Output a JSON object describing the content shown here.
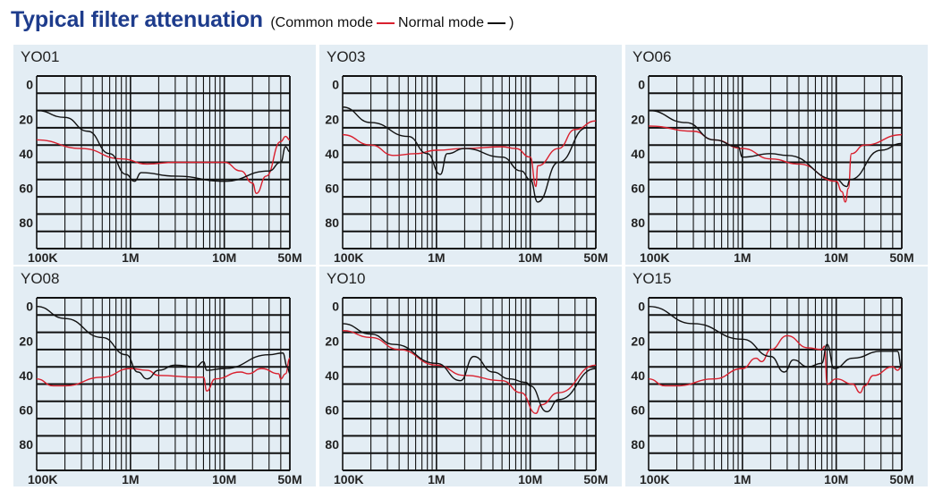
{
  "title": "Typical filter attenuation",
  "legend": {
    "open": "(",
    "common_label": "Common mode",
    "normal_label": "Normal mode",
    "close": ")",
    "common_color": "#d9202e",
    "normal_color": "#111111"
  },
  "chart_data": [
    {
      "type": "line",
      "title": "YO01",
      "xscale": "log",
      "xlim_MHz": [
        0.1,
        50
      ],
      "ylim_dB": [
        -5,
        95
      ],
      "y_inverted": true,
      "yticks": [
        "0",
        "20",
        "40",
        "60",
        "80"
      ],
      "xticks": [
        "100K",
        "1M",
        "10M",
        "50M"
      ],
      "series": [
        {
          "name": "Common mode",
          "color": "#d9202e",
          "x": [
            0.1,
            0.3,
            0.8,
            1.5,
            3,
            10,
            15,
            20,
            22,
            28,
            40,
            45,
            50
          ],
          "y": [
            32,
            37,
            43,
            46,
            45,
            45,
            50,
            57,
            63,
            53,
            33,
            30,
            32
          ]
        },
        {
          "name": "Normal mode",
          "color": "#111111",
          "x": [
            0.1,
            0.2,
            0.35,
            0.6,
            0.9,
            1.1,
            1.3,
            3,
            10,
            30,
            40,
            45,
            50
          ],
          "y": [
            15,
            19,
            27,
            40,
            52,
            56,
            51,
            53,
            56,
            50,
            45,
            36,
            39
          ]
        }
      ]
    },
    {
      "type": "line",
      "title": "YO03",
      "xscale": "log",
      "xlim_MHz": [
        0.1,
        50
      ],
      "ylim_dB": [
        -5,
        95
      ],
      "y_inverted": true,
      "yticks": [
        "0",
        "20",
        "40",
        "60",
        "80"
      ],
      "xticks": [
        "100K",
        "1M",
        "10M",
        "50M"
      ],
      "series": [
        {
          "name": "Common mode",
          "color": "#d9202e",
          "x": [
            0.1,
            0.2,
            0.35,
            0.6,
            1,
            2,
            5,
            7,
            10,
            11.5,
            12,
            20,
            30,
            50
          ],
          "y": [
            29,
            35,
            41,
            40,
            38,
            37,
            36,
            37,
            42,
            59,
            47,
            37,
            26,
            21
          ]
        },
        {
          "name": "Normal mode",
          "color": "#111111",
          "x": [
            0.1,
            0.2,
            0.5,
            0.8,
            1.1,
            1.3,
            2,
            5,
            8,
            10,
            12,
            20,
            40,
            50
          ],
          "y": [
            13,
            22,
            30,
            40,
            52,
            40,
            37,
            42,
            50,
            55,
            68,
            45,
            25,
            25
          ]
        }
      ]
    },
    {
      "type": "line",
      "title": "YO06",
      "xscale": "log",
      "xlim_MHz": [
        0.1,
        50
      ],
      "ylim_dB": [
        -5,
        95
      ],
      "y_inverted": true,
      "yticks": [
        "0",
        "20",
        "40",
        "60",
        "80"
      ],
      "xticks": [
        "100K",
        "1M",
        "10M",
        "50M"
      ],
      "series": [
        {
          "name": "Common mode",
          "color": "#d9202e",
          "x": [
            0.1,
            0.3,
            0.5,
            1,
            2,
            4,
            10,
            11.5,
            12.5,
            13.5,
            14.5,
            20,
            50
          ],
          "y": [
            24,
            27,
            32,
            37,
            43,
            46,
            56,
            62,
            68,
            60,
            40,
            35,
            29
          ]
        },
        {
          "name": "Normal mode",
          "color": "#111111",
          "x": [
            0.1,
            0.25,
            0.5,
            0.9,
            1,
            2,
            3,
            10,
            13,
            14,
            30,
            50
          ],
          "y": [
            15,
            22,
            32,
            36,
            42,
            40,
            41,
            55,
            59,
            55,
            38,
            34
          ]
        }
      ]
    },
    {
      "type": "line",
      "title": "YO08",
      "xscale": "log",
      "xlim_MHz": [
        0.1,
        50
      ],
      "ylim_dB": [
        -5,
        95
      ],
      "y_inverted": true,
      "yticks": [
        "0",
        "20",
        "40",
        "60",
        "80"
      ],
      "xticks": [
        "100K",
        "1M",
        "10M",
        "50M"
      ],
      "series": [
        {
          "name": "Common mode",
          "color": "#d9202e",
          "x": [
            0.1,
            0.15,
            0.2,
            0.5,
            1,
            1.5,
            2,
            5,
            6,
            6.5,
            8,
            15,
            18,
            25,
            38,
            40,
            45,
            50
          ],
          "y": [
            42,
            46,
            46,
            41,
            36,
            37,
            40,
            41,
            41,
            49,
            42,
            38,
            39,
            36,
            39,
            42,
            39,
            30
          ]
        },
        {
          "name": "Normal mode",
          "color": "#111111",
          "x": [
            0.1,
            0.2,
            0.5,
            0.9,
            1.2,
            1.5,
            2,
            3,
            5,
            6,
            6.5,
            10,
            30,
            42,
            47,
            50
          ],
          "y": [
            0,
            7,
            18,
            28,
            38,
            42,
            37,
            34,
            35,
            32,
            37,
            36,
            28,
            27,
            35,
            39
          ]
        }
      ]
    },
    {
      "type": "line",
      "title": "YO10",
      "xscale": "log",
      "xlim_MHz": [
        0.1,
        50
      ],
      "ylim_dB": [
        -5,
        95
      ],
      "y_inverted": true,
      "yticks": [
        "0",
        "20",
        "40",
        "60",
        "80"
      ],
      "xticks": [
        "100K",
        "1M",
        "10M",
        "50M"
      ],
      "series": [
        {
          "name": "Common mode",
          "color": "#d9202e",
          "x": [
            0.1,
            0.2,
            0.4,
            1,
            2,
            5,
            8,
            11.5,
            13,
            20,
            50
          ],
          "y": [
            14,
            18,
            25,
            34,
            40,
            43,
            50,
            62,
            57,
            50,
            34
          ]
        },
        {
          "name": "Normal mode",
          "color": "#111111",
          "x": [
            0.1,
            0.2,
            0.35,
            1,
            1.8,
            2.5,
            4,
            6,
            9,
            10,
            15,
            20,
            50
          ],
          "y": [
            10,
            16,
            22,
            33,
            43,
            29,
            38,
            42,
            44,
            46,
            61,
            54,
            36
          ]
        }
      ]
    },
    {
      "type": "line",
      "title": "YO15",
      "xscale": "log",
      "xlim_MHz": [
        0.1,
        50
      ],
      "ylim_dB": [
        -5,
        95
      ],
      "y_inverted": true,
      "yticks": [
        "0",
        "20",
        "40",
        "60",
        "80"
      ],
      "xticks": [
        "100K",
        "1M",
        "10M",
        "50M"
      ],
      "series": [
        {
          "name": "Common mode",
          "color": "#d9202e",
          "x": [
            0.1,
            0.15,
            0.2,
            0.5,
            1,
            1.4,
            1.6,
            2,
            3,
            5,
            7,
            7.5,
            8,
            10,
            15,
            18,
            20,
            25,
            40,
            45,
            50
          ],
          "y": [
            42,
            46,
            46,
            42,
            36,
            30,
            32,
            25,
            17,
            24,
            25,
            23,
            45,
            42,
            45,
            50,
            46,
            40,
            35,
            37,
            35
          ]
        },
        {
          "name": "Normal mode",
          "color": "#111111",
          "x": [
            0.1,
            0.3,
            1,
            2,
            2.8,
            3.5,
            5,
            7,
            8,
            9.5,
            15,
            30,
            45,
            50
          ],
          "y": [
            0,
            10,
            19,
            29,
            38,
            31,
            35,
            33,
            22,
            36,
            30,
            26,
            26,
            36
          ]
        }
      ]
    }
  ]
}
